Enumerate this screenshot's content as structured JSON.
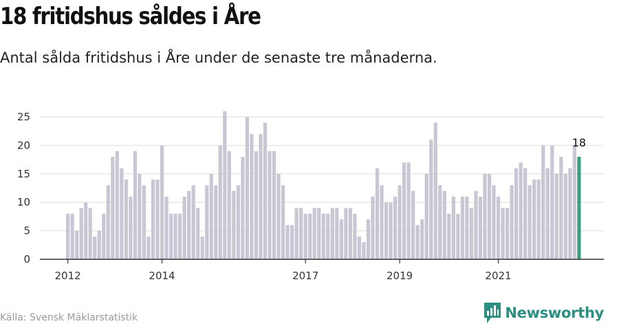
{
  "title": "18 fritidshus såldes i Åre",
  "subtitle": "Antal sålda fritidshus i Åre under de senaste tre månaderna.",
  "source": "Källa: Svensk Mäklarstatistik",
  "brand": {
    "name": "Newsworthy",
    "icon": "newsworthy-logo-icon",
    "color": "#2c8f82"
  },
  "colors": {
    "bar": "#c8c7d3",
    "highlight": "#3a9e86",
    "grid": "#dddddd",
    "axis": "#333333"
  },
  "chart_data": {
    "type": "bar",
    "ylim": [
      0,
      25
    ],
    "y_ticks": [
      0,
      5,
      10,
      15,
      20,
      25
    ],
    "x_tick_labels": [
      {
        "label": "2012",
        "index": 0
      },
      {
        "label": "2014",
        "index": 21
      },
      {
        "label": "2017",
        "index": 53
      },
      {
        "label": "2019",
        "index": 74
      },
      {
        "label": "2021",
        "index": 96
      }
    ],
    "values": [
      8,
      8,
      5,
      9,
      10,
      9,
      4,
      5,
      8,
      13,
      18,
      19,
      16,
      14,
      11,
      19,
      15,
      13,
      4,
      14,
      14,
      20,
      11,
      8,
      8,
      8,
      11,
      12,
      13,
      9,
      4,
      13,
      15,
      13,
      20,
      26,
      19,
      12,
      13,
      18,
      25,
      22,
      19,
      22,
      24,
      19,
      19,
      15,
      13,
      6,
      6,
      9,
      9,
      8,
      8,
      9,
      9,
      8,
      8,
      9,
      9,
      7,
      9,
      9,
      8,
      4,
      3,
      7,
      11,
      16,
      13,
      10,
      10,
      11,
      13,
      17,
      17,
      12,
      6,
      7,
      15,
      21,
      24,
      13,
      12,
      8,
      11,
      8,
      11,
      11,
      9,
      12,
      11,
      15,
      15,
      13,
      11,
      9,
      9,
      13,
      16,
      17,
      16,
      13,
      14,
      14,
      20,
      16,
      20,
      15,
      18,
      15,
      16,
      20,
      18
    ],
    "highlight_index": 114,
    "annotation": "18"
  }
}
